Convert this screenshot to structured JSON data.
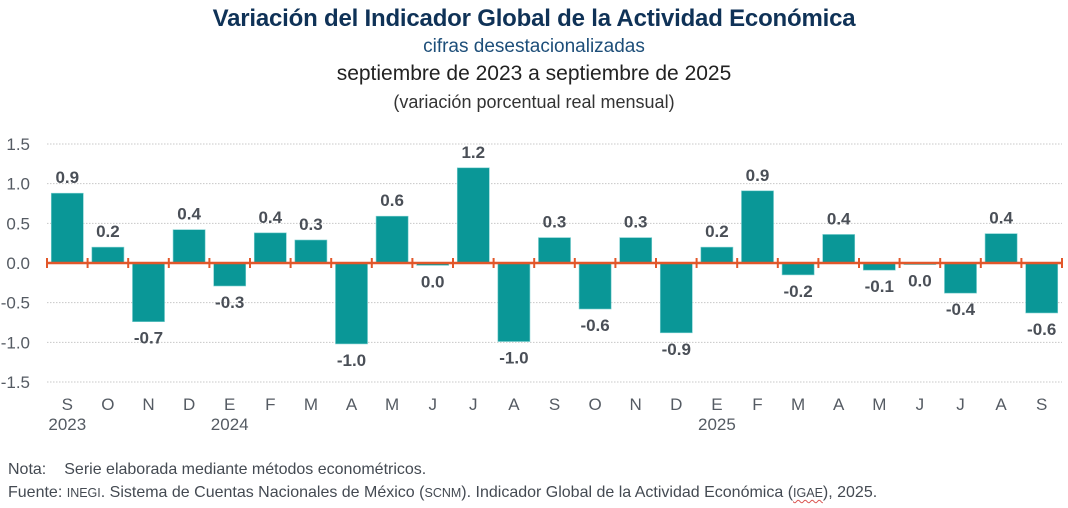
{
  "header": {
    "title": "Variación del Indicador Global de la Actividad Económica",
    "subtitle": "cifras desestacionalizadas",
    "period": "septiembre de 2023 a septiembre de 2025",
    "unit": "(variación porcentual real mensual)"
  },
  "colors": {
    "bar": "#0a9797",
    "zero_line": "#e2572a",
    "title": "#0f3257",
    "grid": "#c8c8c8"
  },
  "chart_data": {
    "type": "bar",
    "title": "Variación del Indicador Global de la Actividad Económica",
    "xlabel": "",
    "ylabel": "",
    "ylim": [
      -1.5,
      1.5
    ],
    "yticks": [
      1.5,
      1.0,
      0.5,
      0.0,
      -0.5,
      -1.0,
      -1.5
    ],
    "ytick_labels": [
      "1.5",
      "1.0",
      "0.5",
      "0.0",
      "-0.5",
      "-1.0",
      "-1.5"
    ],
    "grid": true,
    "legend": "none",
    "categories": [
      "S",
      "O",
      "N",
      "D",
      "E",
      "F",
      "M",
      "A",
      "M",
      "J",
      "J",
      "A",
      "S",
      "O",
      "N",
      "D",
      "E",
      "F",
      "M",
      "A",
      "M",
      "J",
      "J",
      "A",
      "S"
    ],
    "year_labels": [
      {
        "index": 0,
        "label": "2023"
      },
      {
        "index": 4,
        "label": "2024"
      },
      {
        "index": 16,
        "label": "2025"
      }
    ],
    "values": [
      0.88,
      0.2,
      -0.74,
      0.42,
      -0.29,
      0.38,
      0.29,
      -1.02,
      0.59,
      -0.03,
      1.2,
      -0.99,
      0.32,
      -0.58,
      0.32,
      -0.88,
      0.2,
      0.91,
      -0.15,
      0.36,
      -0.09,
      -0.02,
      -0.38,
      0.37,
      -0.63
    ],
    "data_labels": [
      "0.9",
      "0.2",
      "-0.7",
      "0.4",
      "-0.3",
      "0.4",
      "0.3",
      "-1.0",
      "0.6",
      "0.0",
      "1.2",
      "-1.0",
      "0.3",
      "-0.6",
      "0.3",
      "-0.9",
      "0.2",
      "0.9",
      "-0.2",
      "0.4",
      "-0.1",
      "0.0",
      "-0.4",
      "0.4",
      "-0.6"
    ]
  },
  "footer": {
    "note_label": "Nota:",
    "note_text": "Serie elaborada mediante métodos econométricos.",
    "source_label": "Fuente:",
    "source_org": "INEGI",
    "source_text_1": ". Sistema de Cuentas Nacionales de México (",
    "source_abbr_1": "SCNM",
    "source_text_2": "). Indicador Global de la Actividad Económica (",
    "source_abbr_2": "IGAE",
    "source_text_3": "), 2025."
  }
}
